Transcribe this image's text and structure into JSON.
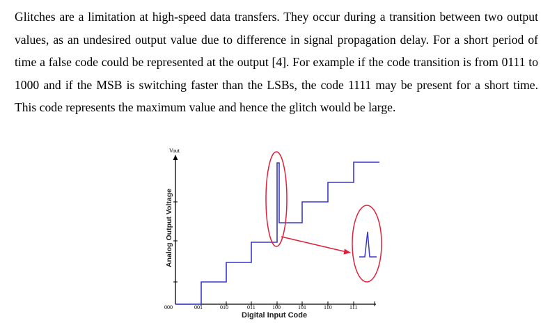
{
  "paragraph": {
    "text": "Glitches are a limitation at high-speed data transfers. They occur during a transition between two output values, as an undesired output value due to difference in signal propagation delay. For a short period of time a false code could be represented at the output [4]. For example if the code transition is from 0111 to 1000 and if the MSB is switching faster than the LSBs, the code 1111 may be present for a short time. This code represents the maximum value and hence the glitch would be large."
  },
  "figure": {
    "y_axis_top_label": "Vout",
    "y_axis_label": "Analog Output Voltage",
    "x_axis_label": "Digital Input Code",
    "x_ticks": [
      "000",
      "001",
      "010",
      "011",
      "100",
      "101",
      "110",
      "111"
    ],
    "colors": {
      "staircase": "#3838c8",
      "highlight": "#e0203a",
      "axis": "#000000"
    }
  }
}
